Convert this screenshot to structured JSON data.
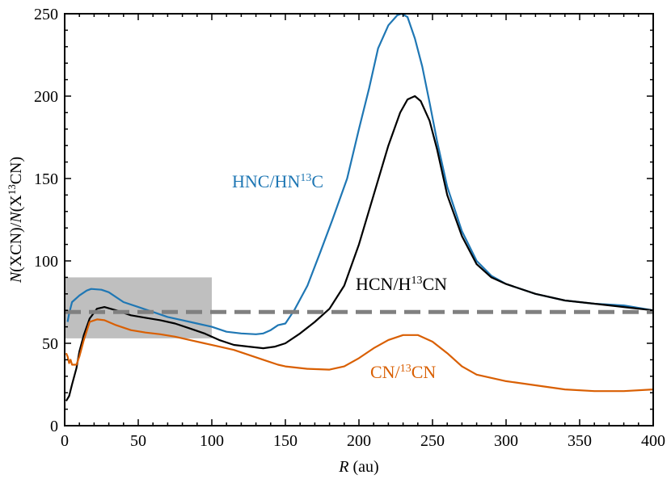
{
  "chart_data": {
    "type": "line",
    "xlabel": "R (au)",
    "ylabel": "N(XCN)/N(X13CN)",
    "xlim": [
      0,
      400
    ],
    "ylim": [
      0,
      250
    ],
    "xticks": [
      0,
      50,
      100,
      150,
      200,
      250,
      300,
      350,
      400
    ],
    "yticks": [
      0,
      50,
      100,
      150,
      200,
      250
    ],
    "grid": false,
    "shaded_region": {
      "x": [
        0,
        100
      ],
      "y": [
        53,
        90
      ],
      "color": "#bfbfbf"
    },
    "reference_line": {
      "y": 69,
      "style": "dashed",
      "color": "#808080"
    },
    "series": [
      {
        "name": "HNC/HN13C",
        "color": "#1f77b4",
        "x": [
          2,
          3,
          5,
          10,
          15,
          18,
          25,
          30,
          40,
          50,
          60,
          70,
          80,
          90,
          100,
          110,
          120,
          130,
          135,
          140,
          145,
          150,
          156,
          165,
          174,
          182,
          192,
          200,
          207,
          213,
          220,
          226,
          229,
          233,
          238,
          243,
          248,
          253,
          260,
          270,
          280,
          290,
          300,
          320,
          340,
          360,
          380,
          400
        ],
        "y": [
          63,
          68,
          75,
          79,
          82,
          83,
          82.5,
          81,
          75,
          72,
          69,
          66,
          64,
          62,
          60,
          57,
          56,
          55.5,
          56,
          58,
          61,
          62,
          70,
          85,
          106,
          125,
          150,
          180,
          205,
          229,
          243,
          249,
          250,
          248,
          235,
          218,
          196,
          173,
          145,
          118,
          100,
          91,
          86,
          80,
          76,
          74,
          73,
          70
        ]
      },
      {
        "name": "HCN/H13CN",
        "color": "#000000",
        "x": [
          1,
          3,
          5,
          8,
          10,
          13,
          17,
          22,
          27,
          35,
          45,
          55,
          65,
          75,
          85,
          95,
          105,
          115,
          125,
          135,
          143,
          150,
          160,
          170,
          180,
          190,
          200,
          210,
          220,
          228,
          233,
          238,
          242,
          248,
          253,
          260,
          270,
          280,
          290,
          300,
          320,
          340,
          360,
          380,
          400
        ],
        "y": [
          15,
          18,
          25,
          35,
          45,
          55,
          65,
          71,
          72,
          70,
          67,
          65.5,
          64,
          62,
          59,
          56,
          52,
          49,
          48,
          47,
          48,
          50,
          56,
          63,
          71,
          85,
          110,
          140,
          170,
          190,
          198,
          200,
          197,
          185,
          168,
          140,
          115,
          98,
          90,
          86,
          80,
          76,
          74,
          72,
          70
        ]
      },
      {
        "name": "CN/13CN",
        "color": "#d95f02",
        "x": [
          1,
          2,
          3,
          4,
          5,
          8,
          10,
          13,
          17,
          22,
          27,
          35,
          45,
          55,
          65,
          75,
          85,
          95,
          105,
          115,
          125,
          135,
          145,
          150,
          165,
          180,
          190,
          200,
          210,
          220,
          230,
          240,
          250,
          260,
          270,
          280,
          300,
          320,
          340,
          360,
          380,
          400
        ],
        "y": [
          44,
          42,
          38,
          40,
          37,
          37,
          42,
          52,
          63,
          64.5,
          64,
          61,
          58,
          56.5,
          55.5,
          54,
          52,
          50,
          48,
          46,
          43,
          40,
          37,
          36,
          34.5,
          34,
          36,
          41,
          47,
          52,
          55,
          55,
          51,
          44,
          36,
          31,
          27,
          24.5,
          22,
          21,
          21,
          22
        ]
      }
    ],
    "annotations": {
      "hnc": {
        "main": "HNC/HN",
        "sup": "13",
        "tail": "C"
      },
      "hcn": {
        "main": "HCN/H",
        "sup": "13",
        "tail": "CN"
      },
      "cn": {
        "main": "CN/",
        "sup": "13",
        "tail": "CN"
      }
    },
    "axis_text": {
      "x_italic": "R",
      "x_rest": " (au)",
      "y_n1": "N",
      "y_mid1": "(XCN)/",
      "y_n2": "N",
      "y_mid2": "(X",
      "y_sup": "13",
      "y_end": "CN)"
    }
  }
}
